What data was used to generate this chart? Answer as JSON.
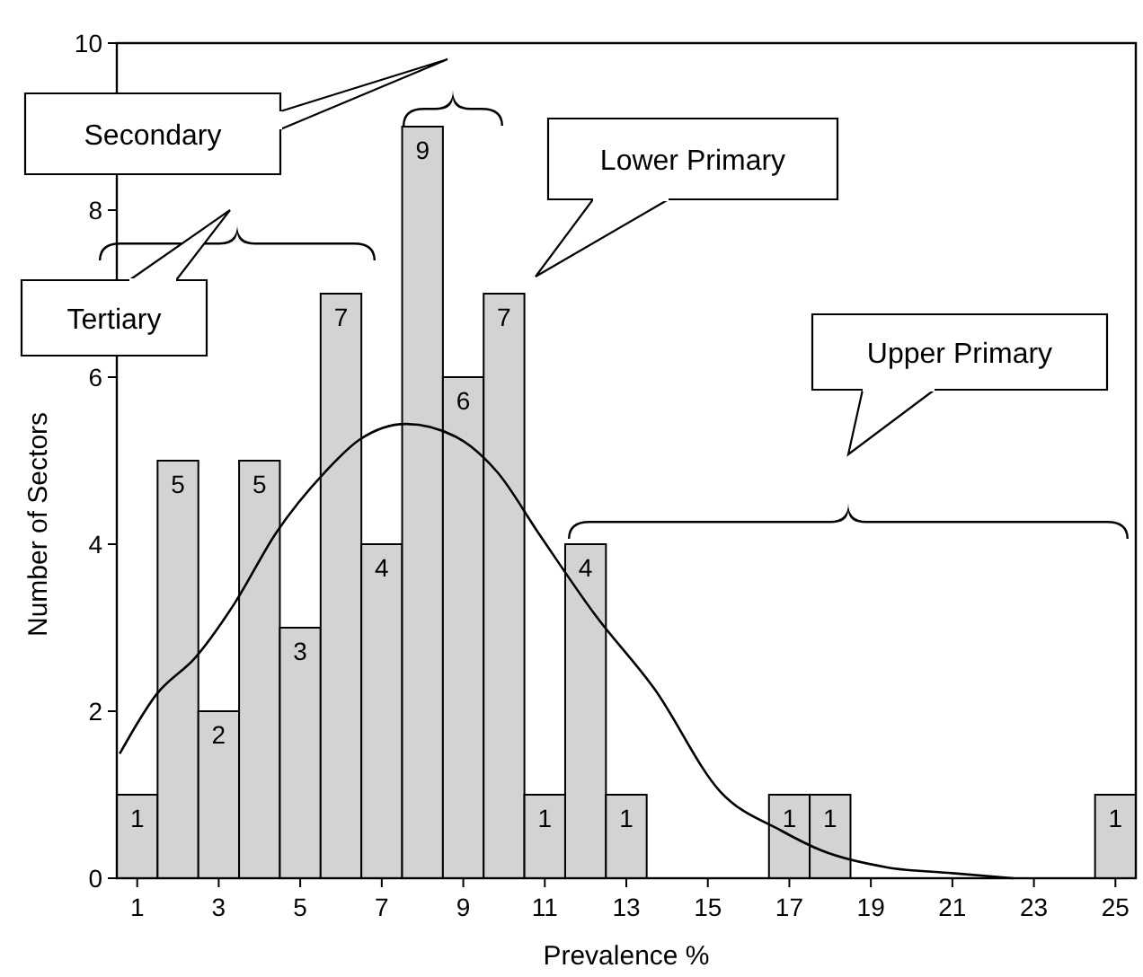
{
  "chart_data": {
    "type": "histogram",
    "xlabel": "Prevalence %",
    "ylabel": "Number of Sectors",
    "bins": [
      0.5,
      1.5,
      2.5,
      3.5,
      4.5,
      5.5,
      6.5,
      7.5,
      8.5,
      9.5,
      10.5,
      11.5,
      12.5,
      13.5,
      14.5,
      15.5,
      16.5,
      17.5,
      18.5,
      19.5,
      20.5,
      21.5,
      22.5,
      23.5,
      24.5,
      25.5
    ],
    "values": [
      1,
      5,
      2,
      5,
      3,
      7,
      4,
      9,
      6,
      7,
      1,
      4,
      1,
      0,
      0,
      0,
      1,
      1,
      0,
      0,
      0,
      0,
      0,
      0,
      1
    ],
    "value_labels": [
      "1",
      "5",
      "2",
      "5",
      "3",
      "7",
      "4",
      "9",
      "6",
      "7",
      "1",
      "4",
      "1",
      null,
      null,
      null,
      "1",
      "1",
      null,
      null,
      null,
      null,
      null,
      null,
      "1"
    ],
    "color": "#d3d3d3",
    "series": [
      {
        "type": "line",
        "color": "#000000",
        "x": [
          0.57,
          1.47,
          2.44,
          3.4,
          4.4,
          5.6,
          6.45,
          7.6,
          8.8,
          9.84,
          10.85,
          12.24,
          13.7,
          15.3,
          16.8,
          17.8,
          19.4,
          21.0,
          22.5
        ],
        "values": [
          1.49,
          2.2,
          2.65,
          3.3,
          4.13,
          4.86,
          5.25,
          5.44,
          5.29,
          4.86,
          4.13,
          3.15,
          2.26,
          1.04,
          0.57,
          0.33,
          0.13,
          0.06,
          0
        ]
      }
    ],
    "xlim": [
      0.5,
      25.5
    ],
    "xticks": [
      1,
      3,
      5,
      7,
      9,
      11,
      13,
      15,
      17,
      19,
      21,
      23,
      25
    ],
    "ylim": [
      0,
      10
    ],
    "yticks": [
      0,
      2,
      4,
      6,
      8,
      10
    ],
    "grid": false,
    "marker": "none",
    "line_style": "solid",
    "annotations": [
      "Secondary",
      "Tertiary",
      "Lower Primary",
      "Upper Primary"
    ]
  }
}
